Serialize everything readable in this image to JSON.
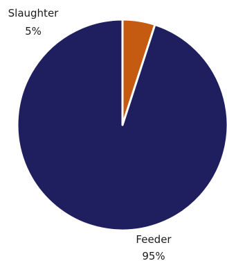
{
  "chart_data": {
    "type": "pie",
    "title": "",
    "slices": [
      {
        "label": "Slaughter",
        "value_label": "5%",
        "value": 5,
        "color": "#C55A11"
      },
      {
        "label": "Feeder",
        "value_label": "95%",
        "value": 95,
        "color": "#1F1F5F"
      }
    ],
    "start_angle_deg": 0,
    "direction": "clockwise",
    "slice_border_color": "#ffffff",
    "legend": "none"
  }
}
